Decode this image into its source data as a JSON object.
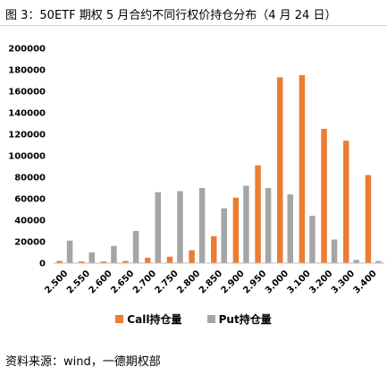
{
  "figure": {
    "title": "图 3：50ETF 期权 5 月合约不同行权价持仓分布（4 月 24 日）",
    "source": "资料来源：wind，一德期权部"
  },
  "chart_data": {
    "type": "bar",
    "categories": [
      "2.500",
      "2.550",
      "2.600",
      "2.650",
      "2.700",
      "2.750",
      "2.800",
      "2.850",
      "2.900",
      "2.950",
      "3.000",
      "3.100",
      "3.200",
      "3.300",
      "3.400"
    ],
    "series": [
      {
        "name": "Call持仓量",
        "color": "#ed7d31",
        "values": [
          2000,
          1500,
          1500,
          2000,
          5000,
          6000,
          12000,
          25000,
          61000,
          91000,
          173000,
          175000,
          125000,
          114000,
          82000
        ]
      },
      {
        "name": "Put持仓量",
        "color": "#a5a5a5",
        "values": [
          21000,
          10000,
          16000,
          30000,
          66000,
          67000,
          70000,
          51000,
          72000,
          70000,
          64000,
          44000,
          22000,
          3000,
          2000
        ]
      }
    ],
    "ylim": [
      0,
      200000
    ],
    "yticks": [
      "0",
      "20000",
      "40000",
      "60000",
      "80000",
      "100000",
      "120000",
      "140000",
      "160000",
      "180000",
      "200000"
    ],
    "grid": false,
    "legend_position": "bottom"
  }
}
